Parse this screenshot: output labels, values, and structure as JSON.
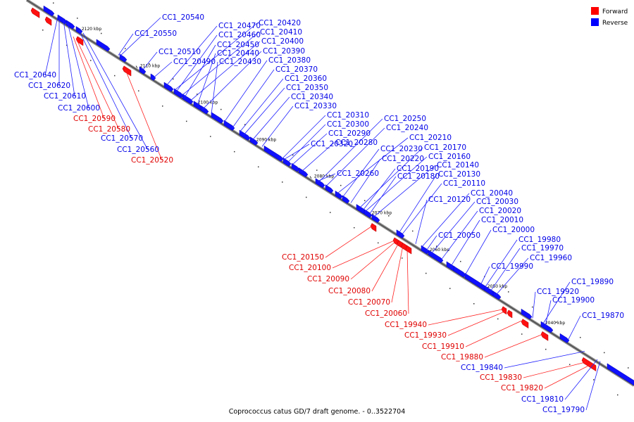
{
  "caption": "Coprococcus catus GD/7 draft genome. - 0..3522704",
  "legend": [
    {
      "label": "Forward",
      "color": "#ff0000"
    },
    {
      "label": "Reverse",
      "color": "#0000ff"
    }
  ],
  "ticks": [
    "2120 kbp",
    "2110 kbp",
    "2100 kbp",
    "2090 kbp",
    "2080 kbp",
    "2070 kbp",
    "2060 kbp",
    "2050 kbp",
    "2040 kbp"
  ],
  "labels_top": [
    {
      "text": "CC1_20540",
      "strand": "reverse"
    },
    {
      "text": "CC1_20550",
      "strand": "reverse"
    },
    {
      "text": "CC1_20470",
      "strand": "reverse"
    },
    {
      "text": "CC1_20420",
      "strand": "reverse"
    },
    {
      "text": "CC1_20460",
      "strand": "reverse"
    },
    {
      "text": "CC1_20410",
      "strand": "reverse"
    },
    {
      "text": "CC1_20450",
      "strand": "reverse"
    },
    {
      "text": "CC1_20400",
      "strand": "reverse"
    },
    {
      "text": "CC1_20510",
      "strand": "reverse"
    },
    {
      "text": "CC1_20440",
      "strand": "reverse"
    },
    {
      "text": "CC1_20390",
      "strand": "reverse"
    },
    {
      "text": "CC1_20490",
      "strand": "reverse"
    },
    {
      "text": "CC1_20430",
      "strand": "reverse"
    },
    {
      "text": "CC1_20380",
      "strand": "reverse"
    },
    {
      "text": "CC1_20370",
      "strand": "reverse"
    },
    {
      "text": "CC1_20360",
      "strand": "reverse"
    },
    {
      "text": "CC1_20350",
      "strand": "reverse"
    },
    {
      "text": "CC1_20340",
      "strand": "reverse"
    },
    {
      "text": "CC1_20330",
      "strand": "reverse"
    },
    {
      "text": "CC1_20310",
      "strand": "reverse"
    },
    {
      "text": "CC1_20300",
      "strand": "reverse"
    },
    {
      "text": "CC1_20290",
      "strand": "reverse"
    },
    {
      "text": "CC1_20320",
      "strand": "reverse"
    },
    {
      "text": "CC1_20280",
      "strand": "reverse"
    },
    {
      "text": "CC1_20250",
      "strand": "reverse"
    },
    {
      "text": "CC1_20240",
      "strand": "reverse"
    },
    {
      "text": "CC1_20210",
      "strand": "reverse"
    },
    {
      "text": "CC1_20230",
      "strand": "reverse"
    },
    {
      "text": "CC1_20170",
      "strand": "reverse"
    },
    {
      "text": "CC1_20220",
      "strand": "reverse"
    },
    {
      "text": "CC1_20160",
      "strand": "reverse"
    },
    {
      "text": "CC1_20190",
      "strand": "reverse"
    },
    {
      "text": "CC1_20140",
      "strand": "reverse"
    },
    {
      "text": "CC1_20260",
      "strand": "reverse"
    },
    {
      "text": "CC1_20180",
      "strand": "reverse"
    },
    {
      "text": "CC1_20130",
      "strand": "reverse"
    },
    {
      "text": "CC1_20110",
      "strand": "reverse"
    },
    {
      "text": "CC1_20040",
      "strand": "reverse"
    },
    {
      "text": "CC1_20120",
      "strand": "reverse"
    },
    {
      "text": "CC1_20030",
      "strand": "reverse"
    },
    {
      "text": "CC1_20020",
      "strand": "reverse"
    },
    {
      "text": "CC1_20010",
      "strand": "reverse"
    },
    {
      "text": "CC1_20000",
      "strand": "reverse"
    },
    {
      "text": "CC1_20050",
      "strand": "reverse"
    },
    {
      "text": "CC1_19980",
      "strand": "reverse"
    },
    {
      "text": "CC1_19970",
      "strand": "reverse"
    },
    {
      "text": "CC1_19960",
      "strand": "reverse"
    },
    {
      "text": "CC1_19990",
      "strand": "reverse"
    },
    {
      "text": "CC1_19890",
      "strand": "reverse"
    },
    {
      "text": "CC1_19920",
      "strand": "reverse"
    },
    {
      "text": "CC1_19900",
      "strand": "reverse"
    },
    {
      "text": "CC1_19870",
      "strand": "reverse"
    }
  ],
  "labels_left": [
    {
      "text": "CC1_20640",
      "strand": "reverse"
    },
    {
      "text": "CC1_20620",
      "strand": "reverse"
    },
    {
      "text": "CC1_20610",
      "strand": "reverse"
    },
    {
      "text": "CC1_20600",
      "strand": "reverse"
    },
    {
      "text": "CC1_20590",
      "strand": "forward"
    },
    {
      "text": "CC1_20580",
      "strand": "forward"
    },
    {
      "text": "CC1_20570",
      "strand": "reverse"
    },
    {
      "text": "CC1_20560",
      "strand": "reverse"
    },
    {
      "text": "CC1_20520",
      "strand": "forward"
    }
  ],
  "labels_bottom": [
    {
      "text": "CC1_20150",
      "strand": "forward"
    },
    {
      "text": "CC1_20100",
      "strand": "forward"
    },
    {
      "text": "CC1_20090",
      "strand": "forward"
    },
    {
      "text": "CC1_20080",
      "strand": "forward"
    },
    {
      "text": "CC1_20070",
      "strand": "forward"
    },
    {
      "text": "CC1_20060",
      "strand": "forward"
    },
    {
      "text": "CC1_19940",
      "strand": "forward"
    },
    {
      "text": "CC1_19930",
      "strand": "forward"
    },
    {
      "text": "CC1_19910",
      "strand": "forward"
    },
    {
      "text": "CC1_19880",
      "strand": "forward"
    },
    {
      "text": "CC1_19840",
      "strand": "reverse"
    },
    {
      "text": "CC1_19830",
      "strand": "forward"
    },
    {
      "text": "CC1_19820",
      "strand": "forward"
    },
    {
      "text": "CC1_19810",
      "strand": "reverse"
    },
    {
      "text": "CC1_19790",
      "strand": "reverse"
    }
  ]
}
